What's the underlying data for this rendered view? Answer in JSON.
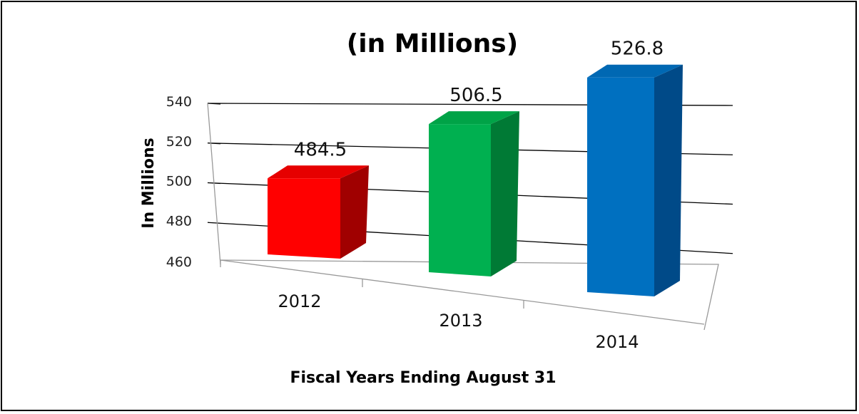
{
  "chart_data": {
    "type": "bar",
    "title": "(in Millions)",
    "xlabel": "Fiscal Years Ending August 31",
    "ylabel": "In Millions",
    "categories": [
      "2012",
      "2013",
      "2014"
    ],
    "values": [
      484.5,
      506.5,
      526.8
    ],
    "value_labels": [
      "484.5",
      "506.5",
      "526.8"
    ],
    "ylim": [
      460,
      540
    ],
    "yticks": [
      460,
      480,
      500,
      520,
      540
    ],
    "grid": true,
    "legend": "none",
    "colors": {
      "2012": {
        "front": "#ff0000",
        "top": "#e60000",
        "side": "#a00000"
      },
      "2013": {
        "front": "#00b050",
        "top": "#00a347",
        "side": "#007a35"
      },
      "2014": {
        "front": "#0070c0",
        "top": "#0068b3",
        "side": "#004a88"
      }
    }
  }
}
